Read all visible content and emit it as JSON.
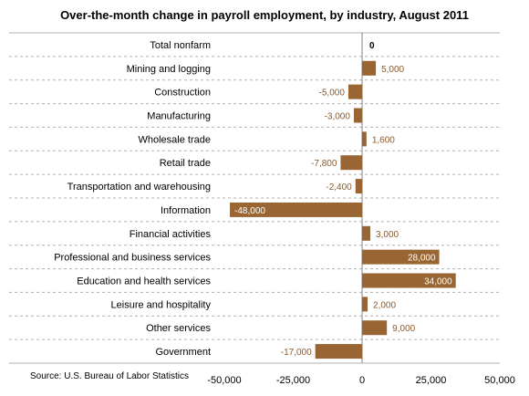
{
  "title": "Over-the-month change in payroll employment, by industry, August 2011",
  "source": "Source: U.S. Bureau of Labor Statistics",
  "colors": {
    "bar": "#996633",
    "label_outside": "#8b5a2b",
    "label_inside": "#ffffff",
    "grid": "#b0b0b0",
    "axis": "#808080"
  },
  "chart_data": {
    "type": "bar",
    "orientation": "horizontal",
    "title": "Over-the-month change in payroll employment, by industry, August 2011",
    "categories": [
      "Total nonfarm",
      "Mining and logging",
      "Construction",
      "Manufacturing",
      "Wholesale trade",
      "Retail trade",
      "Transportation and warehousing",
      "Information",
      "Financial activities",
      "Professional and business services",
      "Education and health services",
      "Leisure and hospitality",
      "Other services",
      "Government"
    ],
    "values": [
      0,
      5000,
      -5000,
      -3000,
      1600,
      -7800,
      -2400,
      -48000,
      3000,
      28000,
      34000,
      2000,
      9000,
      -17000
    ],
    "data_labels": [
      "0",
      "5,000",
      "-5,000",
      "-3,000",
      "1,600",
      "-7,800",
      "-2,400",
      "-48,000",
      "3,000",
      "28,000",
      "34,000",
      "2,000",
      "9,000",
      "-17,000"
    ],
    "xlim": [
      -50000,
      50000
    ],
    "xticks": [
      -50000,
      -25000,
      0,
      25000,
      50000
    ],
    "xtick_labels": [
      "-50,000",
      "-25,000",
      "0",
      "25,000",
      "50,000"
    ],
    "grid": "horizontal dashed lines between categories"
  }
}
